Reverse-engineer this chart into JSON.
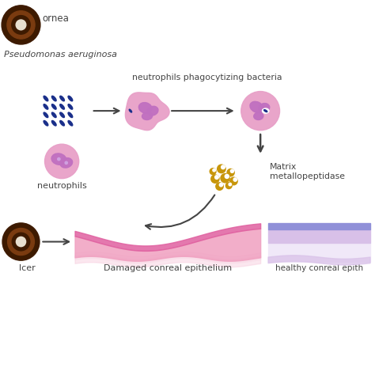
{
  "bg_color": "#ffffff",
  "fig_size": [
    4.74,
    4.74
  ],
  "dpi": 100,
  "bacteria_color": "#1a2f8a",
  "cell_outer_color": "#e8a0c8",
  "cell_inner_color": "#c070c0",
  "cell_nucleus_color": "#7040a0",
  "cell_spot_color": "#d0a0e0",
  "enzyme_color": "#c8960a",
  "cornea_outer": "#3d1a00",
  "cornea_mid": "#7a3b10",
  "cornea_inner": "#3d1a00",
  "cornea_pupil": "#e8e0d0",
  "epi_top": "#e060a0",
  "epi_mid": "#f0a0c0",
  "epi_bot": "#f8d0e0",
  "epi_base": "#fce8f0",
  "healthy_stripe": "#9090d8",
  "healthy_mid": "#d8c0e8",
  "healthy_bot": "#f0e8f8",
  "arrow_color": "#444444",
  "text_color": "#444444",
  "labels": {
    "cornea": "ornea",
    "pseudomonas": "Pseudomonas aeruginosa",
    "neutrophils_phago": "neutrophils phagocytizing bacteria",
    "matrix": "Matrix\nmetallopeptidase",
    "neutrophils": "neutrophils",
    "damaged": "Damaged conreal epithelium",
    "healthy": "healthy conreal epith",
    "ulcer": "lcer"
  }
}
